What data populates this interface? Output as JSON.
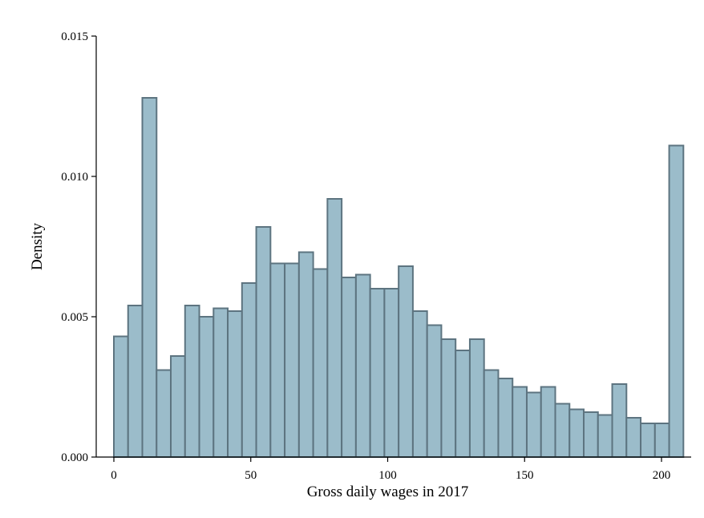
{
  "chart_data": {
    "type": "bar",
    "title": "",
    "xlabel": "Gross daily wages in 2017",
    "ylabel": "Density",
    "xlim": [
      -3,
      210
    ],
    "ylim": [
      0,
      0.0155
    ],
    "x_ticks": [
      0,
      50,
      100,
      150,
      200
    ],
    "y_ticks": [
      0,
      0.005,
      0.01,
      0.015
    ],
    "y_tick_labels": [
      "0.000",
      "0.005",
      "0.010",
      "0.015"
    ],
    "grid": false,
    "bin_width": 5.2,
    "bin_start": 0,
    "values": [
      0.0043,
      0.0054,
      0.0128,
      0.0031,
      0.0036,
      0.0054,
      0.005,
      0.0053,
      0.0052,
      0.0062,
      0.0082,
      0.0069,
      0.0069,
      0.0073,
      0.0067,
      0.0092,
      0.0064,
      0.0065,
      0.006,
      0.006,
      0.0068,
      0.0052,
      0.0047,
      0.0042,
      0.0038,
      0.0042,
      0.0031,
      0.0028,
      0.0025,
      0.0023,
      0.0025,
      0.0019,
      0.0017,
      0.0016,
      0.0015,
      0.0026,
      0.0014,
      0.0012,
      0.0012,
      0.0111
    ],
    "colors": {
      "bar_fill": "#9bbcca",
      "bar_stroke": "#5d7480"
    }
  }
}
